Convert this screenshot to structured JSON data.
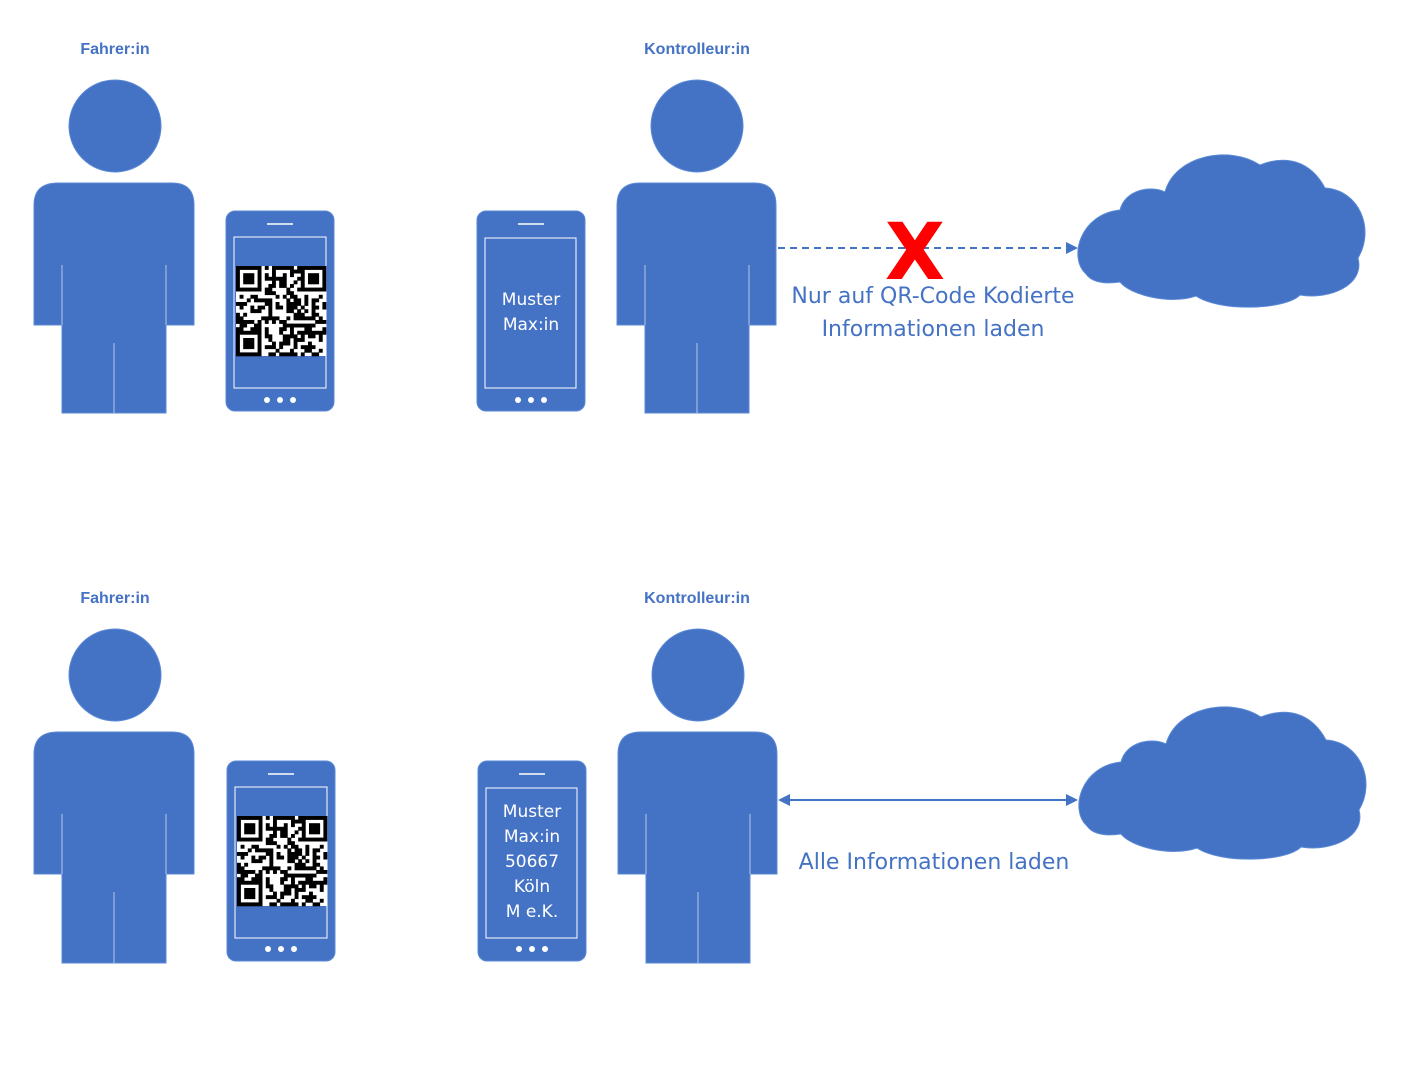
{
  "colors": {
    "figure": "#4472c4",
    "outline": "#5b8ad6",
    "line": "#4472c4",
    "blocked": "#ff0000",
    "phone_text": "#ffffff"
  },
  "scenarios": [
    {
      "driver_label": "Fahrer:in",
      "controller_label": "Kontrolleur:in",
      "controller_screen_lines": [
        "Muster",
        "Max:in"
      ],
      "connection": "dashed-one-way-blocked",
      "blocked_mark": "X",
      "caption_lines": [
        "Nur auf QR-Code Kodierte",
        "Informationen laden"
      ]
    },
    {
      "driver_label": "Fahrer:in",
      "controller_label": "Kontrolleur:in",
      "controller_screen_lines": [
        "Muster",
        "Max:in",
        "50667",
        "Köln",
        "M e.K."
      ],
      "connection": "solid-two-way",
      "caption_lines": [
        "Alle Informationen laden"
      ]
    }
  ],
  "icons": [
    "person-icon",
    "smartphone-icon",
    "qr-code-icon",
    "cloud-icon",
    "arrow-icon"
  ]
}
